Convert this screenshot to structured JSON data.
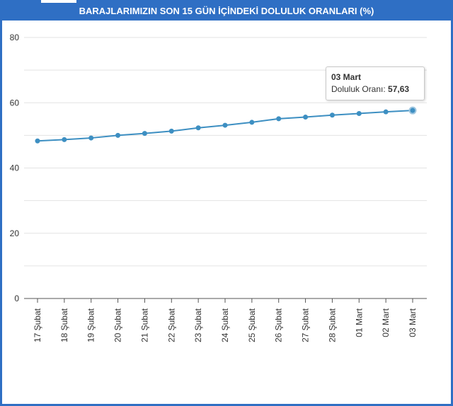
{
  "title": "BARAJLARIMIZIN SON 15 GÜN İÇİNDEKİ DOLULUK ORANLARI (%)",
  "tooltip": {
    "date": "03 Mart",
    "label": "Doluluk Oranı:",
    "value": "57,63"
  },
  "colors": {
    "frame": "#2f6fc4",
    "line": "#3d8fc2",
    "grid": "#e3e3e3"
  },
  "chart_data": {
    "type": "line",
    "title": "BARAJLARIMIZIN SON 15 GÜN İÇİNDEKİ DOLULUK ORANLARI (%)",
    "xlabel": "",
    "ylabel": "",
    "ylim": [
      0,
      80
    ],
    "yticks": [
      0,
      20,
      40,
      60,
      80
    ],
    "grid": true,
    "categories": [
      "17 Şubat",
      "18 Şubat",
      "19 Şubat",
      "20 Şubat",
      "21 Şubat",
      "22 Şubat",
      "23 Şubat",
      "24 Şubat",
      "25 Şubat",
      "26 Şubat",
      "27 Şubat",
      "28 Şubat",
      "01 Mart",
      "02 Mart",
      "03 Mart"
    ],
    "series": [
      {
        "name": "Doluluk Oranı",
        "values": [
          48.3,
          48.7,
          49.2,
          50.0,
          50.6,
          51.3,
          52.3,
          53.1,
          54.0,
          55.1,
          55.6,
          56.2,
          56.7,
          57.2,
          57.63
        ]
      }
    ]
  }
}
